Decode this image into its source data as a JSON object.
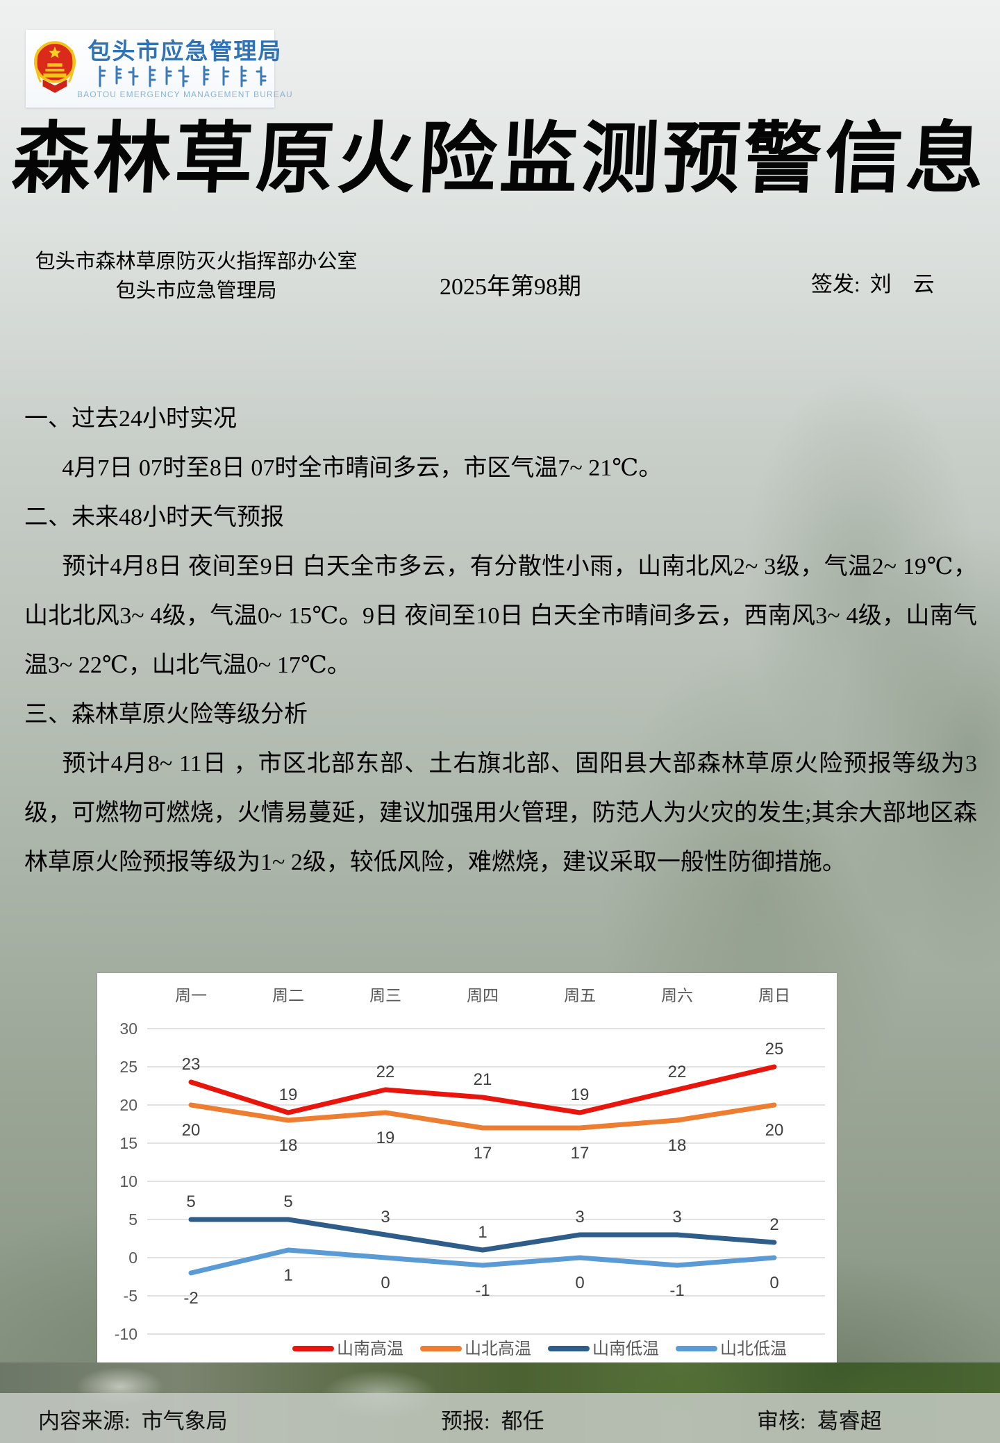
{
  "header": {
    "logo": {
      "org_name_cn": "包头市应急管理局",
      "org_name_en": "BAOTOU EMERGENCY MANAGEMENT BUREAU",
      "emblem": "prc-national-emblem",
      "accent_color": "#2e73b8"
    },
    "title": "森林草原火险监测预警信息",
    "issuer": {
      "line1": "包头市森林草原防灭火指挥部办公室",
      "line2": "包头市应急管理局"
    },
    "issue_number": "2025年第98期",
    "signer": {
      "label": "签发:",
      "name": "刘　云"
    }
  },
  "body": {
    "sections": [
      {
        "heading": "一、过去24小时实况",
        "text": "4月7日 07时至8日 07时全市晴间多云，市区气温7~ 21℃。"
      },
      {
        "heading": "二、未来48小时天气预报",
        "text": "预计4月8日 夜间至9日 白天全市多云，有分散性小雨，山南北风2~ 3级，气温2~ 19℃，山北北风3~ 4级，气温0~ 15℃。9日 夜间至10日 白天全市晴间多云，西南风3~ 4级，山南气温3~ 22℃，山北气温0~ 17℃。"
      },
      {
        "heading": "三、森林草原火险等级分析",
        "text": "预计4月8~ 11日 ，市区北部东部、土右旗北部、固阳县大部森林草原火险预报等级为3级，可燃物可燃烧，火情易蔓延，建议加强用火管理，防范人为火灾的发生;其余大部地区森林草原火险预报等级为1~ 2级，较低风险，难燃烧，建议采取一般性防御措施。"
      }
    ]
  },
  "chart_data": {
    "type": "line",
    "categories": [
      "周一",
      "周二",
      "周三",
      "周四",
      "周五",
      "周六",
      "周日"
    ],
    "series": [
      {
        "name": "山南高温",
        "color": "#e8150d",
        "values": [
          23,
          19,
          22,
          21,
          19,
          22,
          25
        ],
        "label_position": "above"
      },
      {
        "name": "山北高温",
        "color": "#ed7d31",
        "values": [
          20,
          18,
          19,
          17,
          17,
          18,
          20
        ],
        "label_position": "below"
      },
      {
        "name": "山南低温",
        "color": "#2e5d8a",
        "values": [
          5,
          5,
          3,
          1,
          3,
          3,
          2
        ],
        "label_position": "above"
      },
      {
        "name": "山北低温",
        "color": "#5b9bd5",
        "values": [
          -2,
          1,
          0,
          -1,
          0,
          -1,
          0
        ],
        "label_position": "below"
      }
    ],
    "title": "",
    "xlabel": "",
    "ylabel": "",
    "ylim": [
      -10,
      30
    ],
    "ytick_step": 5,
    "grid": true,
    "grid_color": "#d9d9d9",
    "axis_label_color": "#595959",
    "data_label_color": "#3f3f3f",
    "legend_position": "bottom",
    "category_labels_position": "top"
  },
  "footer": {
    "items": [
      {
        "label": "内容来源:",
        "value": "市气象局"
      },
      {
        "label": "预报:",
        "value": "都任"
      },
      {
        "label": "审核:",
        "value": "葛睿超"
      }
    ]
  }
}
